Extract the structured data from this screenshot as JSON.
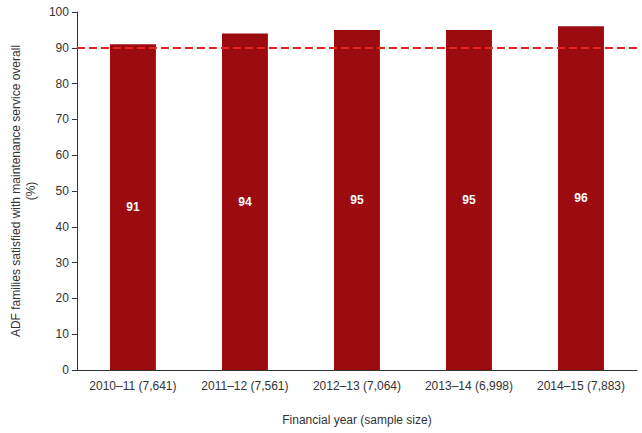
{
  "chart_data": {
    "type": "bar",
    "y_label": "ADF families satisfied with maintenance service overall\n(%)",
    "x_label": "Financial year (sample size)",
    "categories": [
      "2010–11 (7,641)",
      "2011–12 (7,561)",
      "2012–13 (7,064)",
      "2013–14 (6,998)",
      "2014–15 (7,883)"
    ],
    "values": [
      91,
      94,
      95,
      95,
      96
    ],
    "color": "#9b0b10",
    "ylim": [
      0,
      100
    ],
    "yticks": [
      0,
      10,
      20,
      30,
      40,
      50,
      60,
      70,
      80,
      90,
      100
    ],
    "grid": false,
    "data_labels": true,
    "reference_line": {
      "value": 90,
      "color": "#e8231f",
      "line_style": "dashed"
    }
  }
}
